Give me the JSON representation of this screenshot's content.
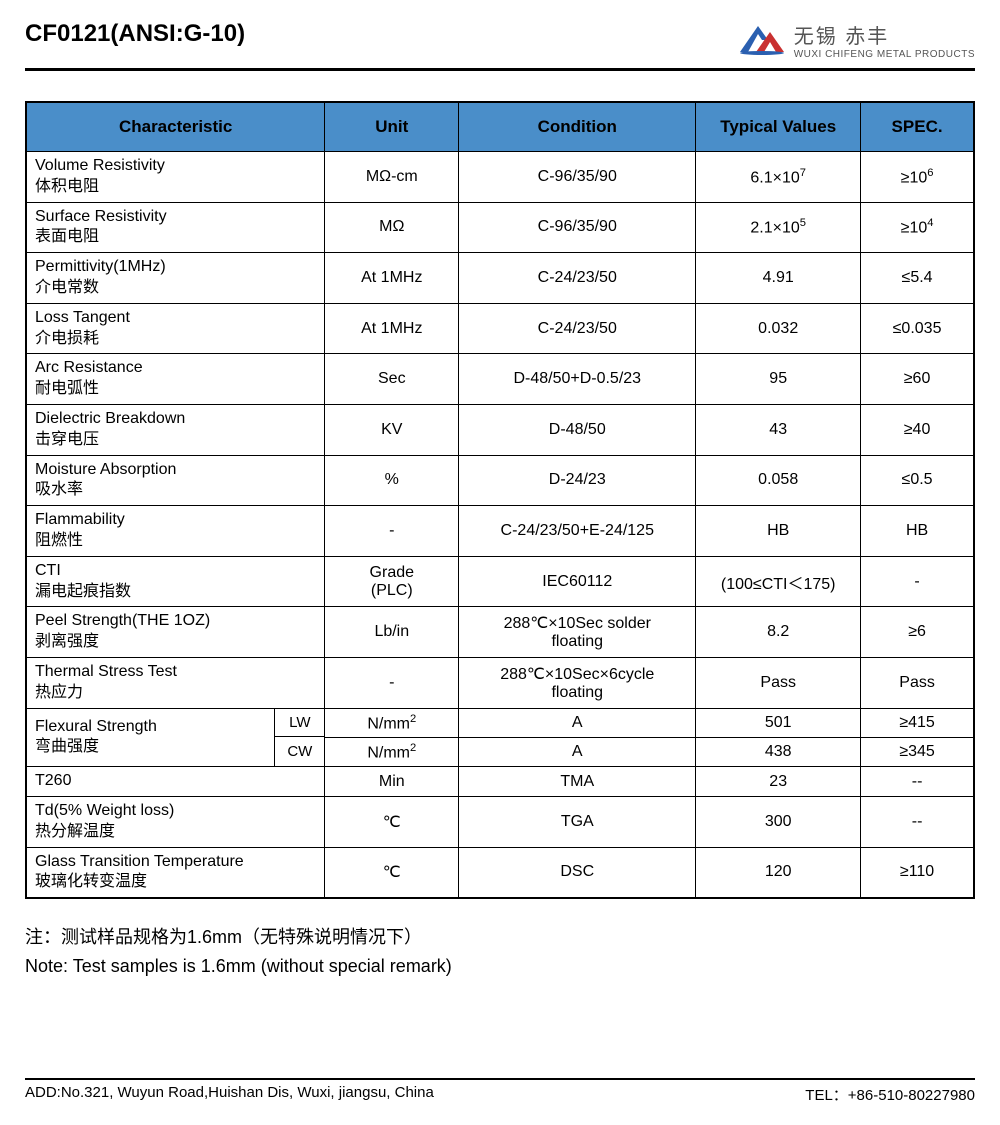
{
  "header": {
    "title": "CF0121(ANSI:G-10)",
    "company_cn": "无锡 赤丰",
    "company_en": "WUXI CHIFENG METAL PRODUCTS"
  },
  "colors": {
    "header_bg": "#4a8ec9",
    "border": "#000000",
    "logo_blue": "#2a5fb0",
    "logo_red": "#c93030"
  },
  "table": {
    "columns": [
      "Characteristic",
      "Unit",
      "Condition",
      "Typical Values",
      "SPEC."
    ],
    "rows": [
      {
        "char_en": "Volume Resistivity",
        "char_cn": "体积电阻",
        "unit": "MΩ-cm",
        "cond": "C-96/35/90",
        "typ": "6.1×10<sup>7</sup>",
        "spec": "≥10<sup>6</sup>"
      },
      {
        "char_en": "Surface Resistivity",
        "char_cn": "表面电阻",
        "unit": "MΩ",
        "cond": "C-96/35/90",
        "typ": "2.1×10<sup>5</sup>",
        "spec": "≥10<sup>4</sup>"
      },
      {
        "char_en": "Permittivity(1MHz)",
        "char_cn": "介电常数",
        "unit": "At 1MHz",
        "cond": "C-24/23/50",
        "typ": "4.91",
        "spec": "≤5.4"
      },
      {
        "char_en": "Loss Tangent",
        "char_cn": "介电损耗",
        "unit": "At 1MHz",
        "cond": "C-24/23/50",
        "typ": "0.032",
        "spec": "≤0.035"
      },
      {
        "char_en": "Arc Resistance",
        "char_cn": "耐电弧性",
        "unit": "Sec",
        "cond": "D-48/50+D-0.5/23",
        "typ": "95",
        "spec": "≥60"
      },
      {
        "char_en": "Dielectric Breakdown",
        "char_cn": "击穿电压",
        "unit": "KV",
        "cond": "D-48/50",
        "typ": "43",
        "spec": "≥40"
      },
      {
        "char_en": "Moisture Absorption",
        "char_cn": "吸水率",
        "unit": "%",
        "cond": "D-24/23",
        "typ": "0.058",
        "spec": "≤0.5"
      },
      {
        "char_en": "Flammability",
        "char_cn": "阻燃性",
        "unit": "-",
        "cond": "C-24/23/50+E-24/125",
        "typ": "HB",
        "spec": "HB"
      },
      {
        "char_en": "CTI",
        "char_cn": "漏电起痕指数",
        "unit": "Grade<br>(PLC)",
        "cond": "IEC60112",
        "typ": "(100≤CTI＜175)",
        "spec": "-"
      },
      {
        "char_en": "Peel Strength(THE 1OZ)",
        "char_cn": "剥离强度",
        "unit": "Lb/in",
        "cond": "288℃×10Sec solder<br>floating",
        "typ": "8.2",
        "spec": "≥6"
      },
      {
        "char_en": "Thermal Stress Test",
        "char_cn": "热应力",
        "unit": "-",
        "cond": "288℃×10Sec×6cycle<br>floating",
        "typ": "Pass",
        "spec": "Pass"
      },
      {
        "char_en": "Flexural Strength",
        "char_cn": "弯曲强度",
        "subrows": [
          {
            "sub": "LW",
            "unit": "N/mm<sup>2</sup>",
            "cond": "A",
            "typ": "501",
            "spec": "≥415"
          },
          {
            "sub": "CW",
            "unit": "N/mm<sup>2</sup>",
            "cond": "A",
            "typ": "438",
            "spec": "≥345"
          }
        ]
      },
      {
        "char_en": "T260",
        "char_cn": "",
        "unit": "Min",
        "cond": "TMA",
        "typ": "23",
        "spec": "--",
        "single": true
      },
      {
        "char_en": "Td(5% Weight loss)",
        "char_cn": "热分解温度",
        "unit": "℃",
        "cond": "TGA",
        "typ": "300",
        "spec": "--"
      },
      {
        "char_en": "Glass Transition Temperature",
        "char_cn": "玻璃化转变温度",
        "unit": "℃",
        "cond": "DSC",
        "typ": "120",
        "spec": "≥110"
      }
    ]
  },
  "notes": {
    "cn": "注：测试样品规格为1.6mm（无特殊说明情况下）",
    "en": "Note: Test samples is 1.6mm (without special remark)"
  },
  "footer": {
    "address": "ADD:No.321, Wuyun Road,Huishan Dis, Wuxi, jiangsu, China",
    "tel": "TEL：+86-510-80227980"
  }
}
